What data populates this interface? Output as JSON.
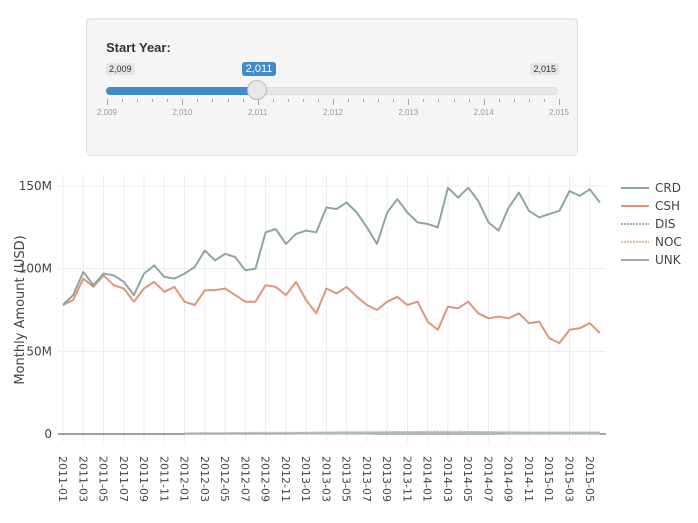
{
  "slider": {
    "label": "Start Year:",
    "min_label": "2,009",
    "max_label": "2,015",
    "current_label": "2,011",
    "min": 2009,
    "max": 2015,
    "value": 2011,
    "ticks": [
      "2,009",
      "2,010",
      "2,011",
      "2,012",
      "2,013",
      "2,014",
      "2,015"
    ],
    "accent": "#428bca"
  },
  "chart_data": {
    "type": "line",
    "title": "",
    "xlabel": "",
    "ylabel": "Monthly Amount (USD)",
    "ylim": [
      0,
      150000000
    ],
    "yticks": [
      0,
      50000000,
      100000000,
      150000000
    ],
    "ytick_labels": [
      "0",
      "50M",
      "100M",
      "150M"
    ],
    "xtick_labels": [
      "2011-01",
      "2011-03",
      "2011-05",
      "2011-07",
      "2011-09",
      "2011-11",
      "2012-01",
      "2012-03",
      "2012-05",
      "2012-07",
      "2012-09",
      "2012-11",
      "2013-01",
      "2013-03",
      "2013-05",
      "2013-07",
      "2013-09",
      "2013-11",
      "2014-01",
      "2014-03",
      "2014-05",
      "2014-07",
      "2014-09",
      "2014-11",
      "2015-01",
      "2015-03",
      "2015-05"
    ],
    "grid": true,
    "legend_position": "right",
    "x_start": "2011-01",
    "x_end": "2015-06",
    "series": [
      {
        "name": "CRD",
        "color": "#8ea79e",
        "dash": "none",
        "start": "2011-01",
        "values": [
          78,
          84,
          98,
          90,
          97,
          96,
          92,
          84,
          97,
          102,
          95,
          94,
          97,
          101,
          111,
          105,
          109,
          107,
          99,
          100,
          122,
          124,
          115,
          121,
          123,
          122,
          137,
          136,
          140,
          134,
          125,
          115,
          134,
          142,
          134,
          128,
          127,
          125,
          149,
          143,
          149,
          141,
          128,
          123,
          137,
          146,
          135,
          131,
          133,
          135,
          147,
          144,
          148,
          140
        ]
      },
      {
        "name": "CSH",
        "color": "#e0967c",
        "dash": "none",
        "start": "2011-01",
        "values": [
          78,
          81,
          94,
          89,
          96,
          90,
          88,
          80,
          88,
          92,
          86,
          89,
          80,
          78,
          87,
          87,
          88,
          84,
          80,
          80,
          90,
          89,
          84,
          92,
          81,
          73,
          88,
          85,
          89,
          83,
          78,
          75,
          80,
          83,
          78,
          80,
          68,
          63,
          77,
          76,
          80,
          73,
          70,
          71,
          70,
          73,
          67,
          68,
          58,
          55,
          63,
          64,
          67,
          61
        ]
      },
      {
        "name": "DIS",
        "color": "#9ab8ac",
        "dash": "2,1",
        "start": "2012-01",
        "values": [
          0.3,
          0.4,
          0.4,
          0.5,
          0.5,
          0.6,
          0.6,
          0.7,
          0.7,
          0.7,
          0.8,
          0.8,
          0.8,
          0.9,
          0.9,
          1.0,
          1.0,
          1.0,
          1.1,
          1.1,
          1.2,
          1.2,
          1.2,
          1.2,
          1.3,
          1.3,
          1.3,
          1.3,
          1.2,
          1.2,
          1.2,
          1.1,
          1.0,
          1.0,
          0.9,
          0.9,
          0.9,
          0.9,
          0.9,
          0.9,
          0.9,
          0.9
        ]
      },
      {
        "name": "NOC",
        "color": "#e8b9a0",
        "dash": "2,1",
        "start": "2012-01",
        "values": [
          0.2,
          0.2,
          0.3,
          0.3,
          0.3,
          0.3,
          0.4,
          0.4,
          0.4,
          0.4,
          0.5,
          0.5,
          0.5,
          0.5,
          0.6,
          0.6,
          0.6,
          0.7,
          0.7,
          0.7,
          0.8,
          0.8,
          0.8,
          0.8,
          0.9,
          0.9,
          0.9,
          0.9,
          0.8,
          0.8,
          0.8,
          0.7,
          0.7,
          0.6,
          0.6,
          0.6,
          0.6,
          0.6,
          0.6,
          0.6,
          0.6,
          0.6
        ]
      },
      {
        "name": "UNK",
        "color": "#a8a8a8",
        "dash": "none",
        "start": "2012-01",
        "values": [
          0.1,
          0.1,
          0.1,
          0.1,
          0.2,
          0.2,
          0.2,
          0.2,
          0.2,
          0.2,
          0.2,
          0.3,
          0.3,
          0.3,
          0.3,
          0.3,
          0.3,
          0.3,
          0.3,
          0.4,
          0.4,
          0.4,
          0.4,
          0.4,
          0.4,
          0.4,
          0.4,
          0.4,
          0.4,
          0.4,
          0.4,
          0.4,
          0.3,
          0.3,
          0.3,
          0.3,
          0.3,
          0.3,
          0.3,
          0.3,
          0.3,
          0.3
        ]
      }
    ],
    "value_unit": "M"
  }
}
